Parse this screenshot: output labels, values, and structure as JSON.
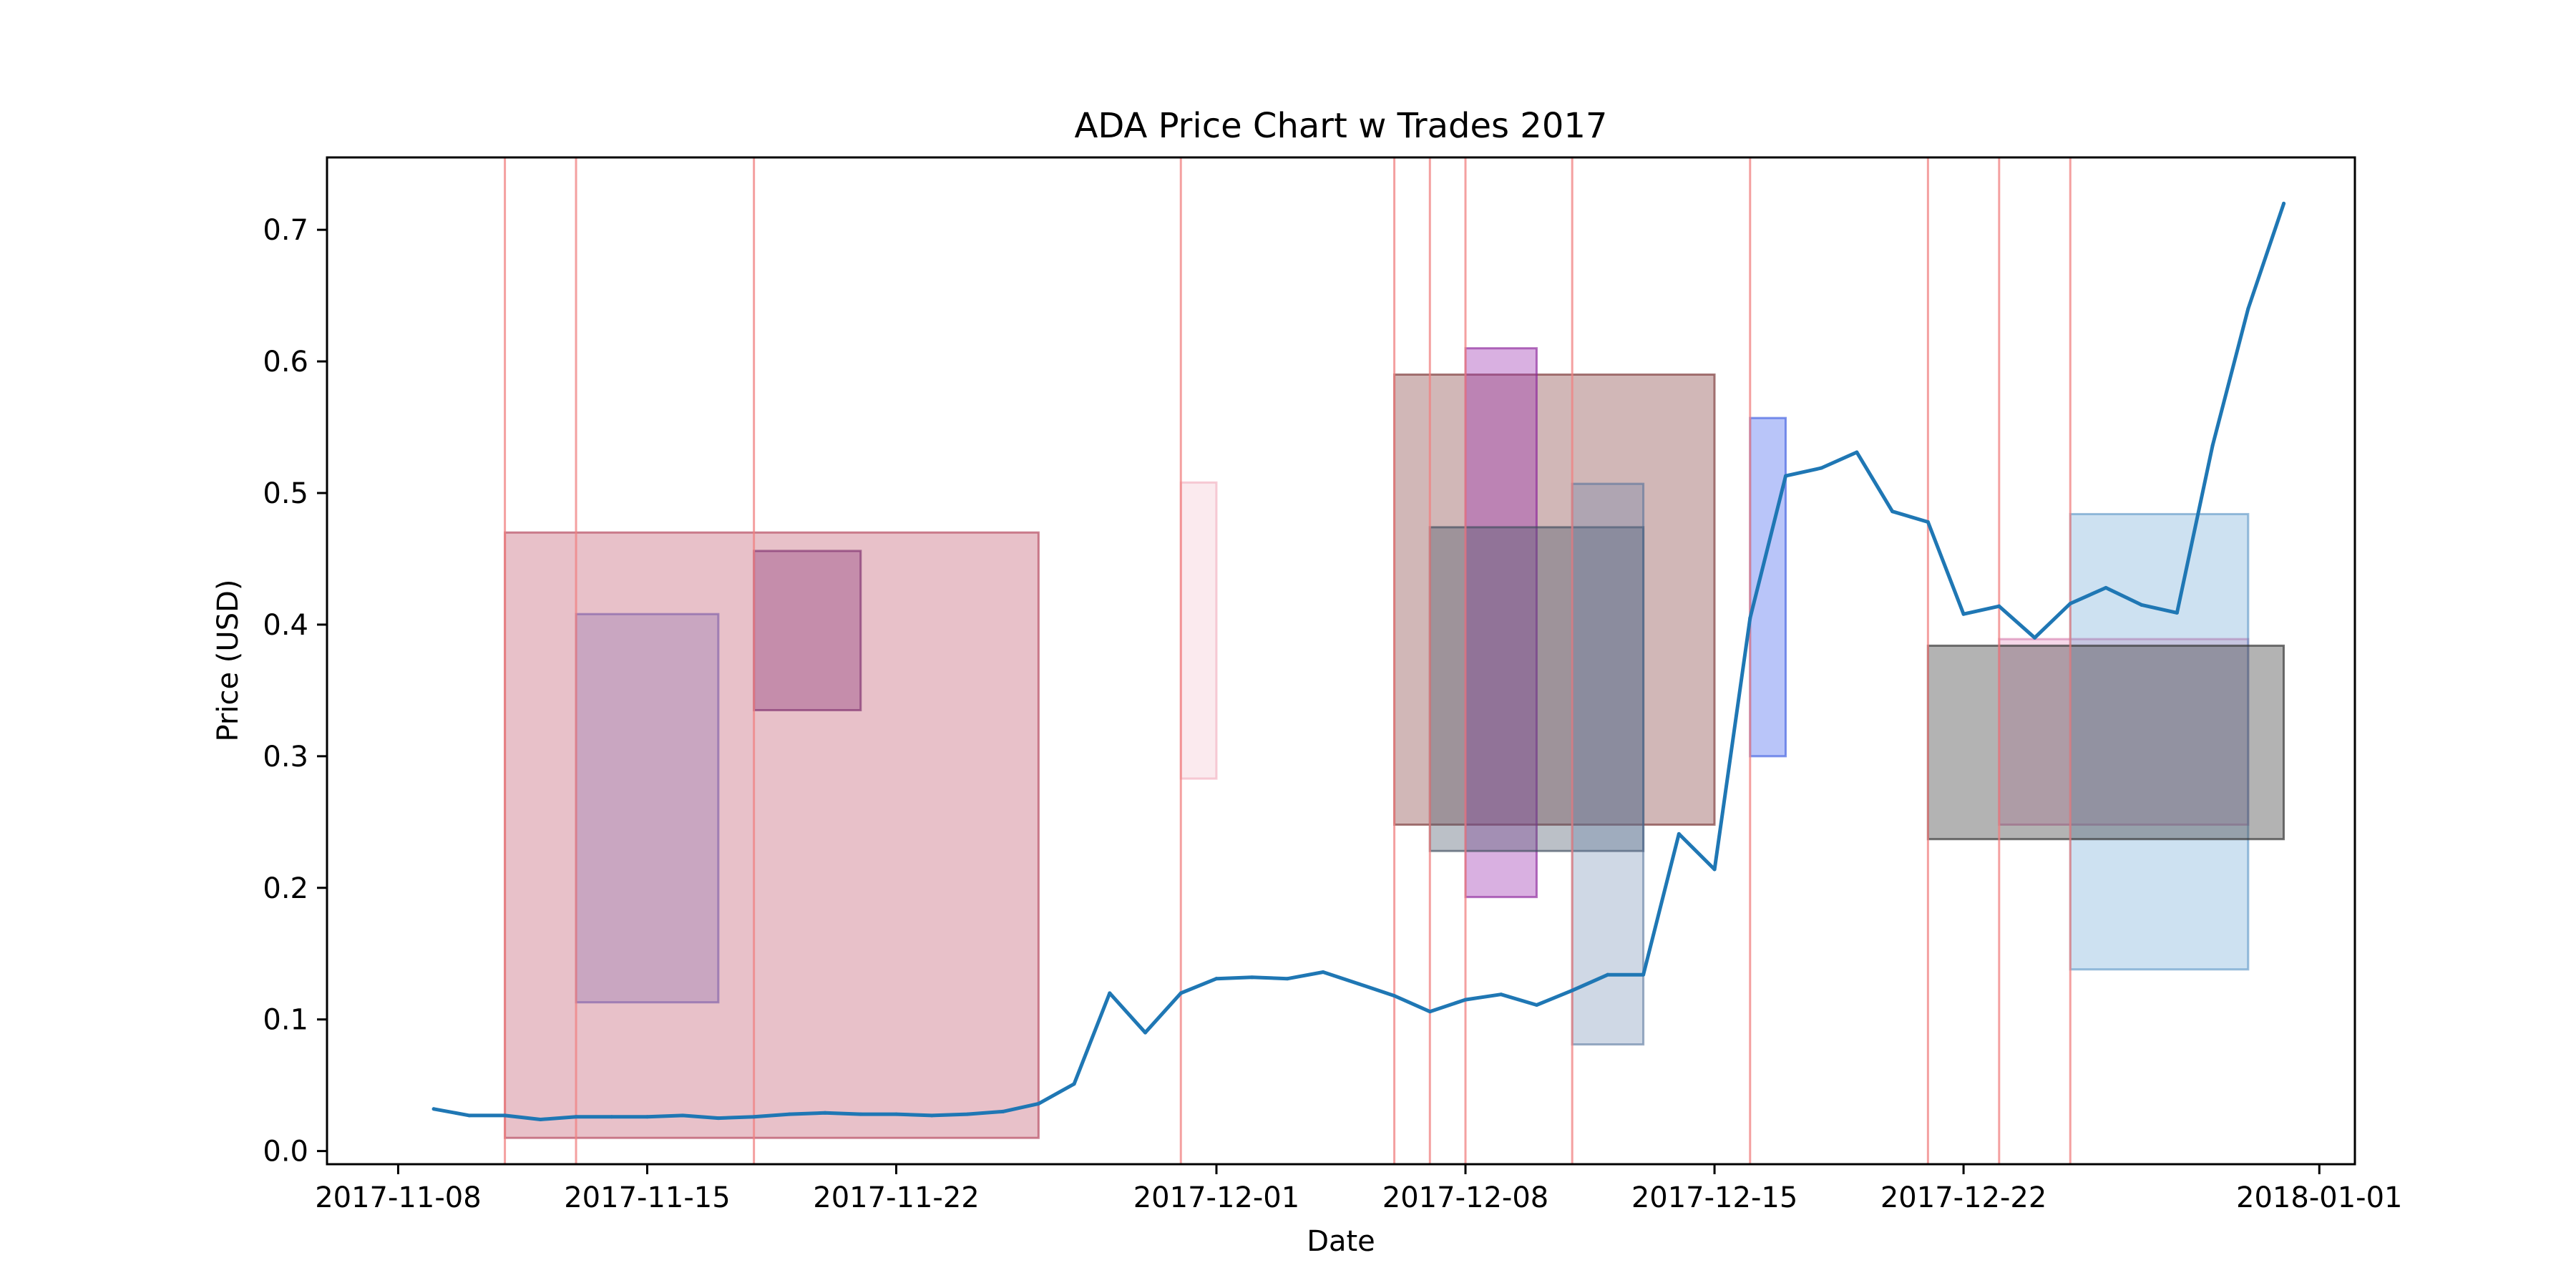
{
  "chart_data": {
    "type": "line",
    "title": "ADA Price Chart w Trades 2017",
    "xlabel": "Date",
    "ylabel": "Price (USD)",
    "xlim": [
      "2017-11-06",
      "2018-01-02"
    ],
    "ylim": [
      -0.01,
      0.755
    ],
    "xticks": [
      "2017-11-08",
      "2017-11-15",
      "2017-11-22",
      "2017-12-01",
      "2017-12-08",
      "2017-12-15",
      "2017-12-22",
      "2018-01-01"
    ],
    "yticks": [
      "0.0",
      "0.1",
      "0.2",
      "0.3",
      "0.4",
      "0.5",
      "0.6",
      "0.7"
    ],
    "grid": false,
    "legend": "none",
    "series": [
      {
        "color": "#1f77b4",
        "points": [
          [
            "2017-11-09",
            0.032
          ],
          [
            "2017-11-10",
            0.027
          ],
          [
            "2017-11-11",
            0.027
          ],
          [
            "2017-11-12",
            0.024
          ],
          [
            "2017-11-13",
            0.026
          ],
          [
            "2017-11-14",
            0.026
          ],
          [
            "2017-11-15",
            0.026
          ],
          [
            "2017-11-16",
            0.027
          ],
          [
            "2017-11-17",
            0.025
          ],
          [
            "2017-11-18",
            0.026
          ],
          [
            "2017-11-19",
            0.028
          ],
          [
            "2017-11-20",
            0.029
          ],
          [
            "2017-11-21",
            0.028
          ],
          [
            "2017-11-22",
            0.028
          ],
          [
            "2017-11-23",
            0.027
          ],
          [
            "2017-11-24",
            0.028
          ],
          [
            "2017-11-25",
            0.03
          ],
          [
            "2017-11-26",
            0.036
          ],
          [
            "2017-11-27",
            0.051
          ],
          [
            "2017-11-28",
            0.12
          ],
          [
            "2017-11-29",
            0.09
          ],
          [
            "2017-11-30",
            0.12
          ],
          [
            "2017-12-01",
            0.131
          ],
          [
            "2017-12-02",
            0.132
          ],
          [
            "2017-12-03",
            0.131
          ],
          [
            "2017-12-04",
            0.136
          ],
          [
            "2017-12-05",
            0.127
          ],
          [
            "2017-12-06",
            0.118
          ],
          [
            "2017-12-07",
            0.106
          ],
          [
            "2017-12-08",
            0.115
          ],
          [
            "2017-12-09",
            0.119
          ],
          [
            "2017-12-10",
            0.111
          ],
          [
            "2017-12-11",
            0.122
          ],
          [
            "2017-12-12",
            0.134
          ],
          [
            "2017-12-13",
            0.134
          ],
          [
            "2017-12-14",
            0.241
          ],
          [
            "2017-12-15",
            0.214
          ],
          [
            "2017-12-16",
            0.405
          ],
          [
            "2017-12-17",
            0.513
          ],
          [
            "2017-12-18",
            0.519
          ],
          [
            "2017-12-19",
            0.531
          ],
          [
            "2017-12-20",
            0.486
          ],
          [
            "2017-12-21",
            0.478
          ],
          [
            "2017-12-22",
            0.408
          ],
          [
            "2017-12-23",
            0.414
          ],
          [
            "2017-12-24",
            0.39
          ],
          [
            "2017-12-25",
            0.416
          ],
          [
            "2017-12-26",
            0.428
          ],
          [
            "2017-12-27",
            0.415
          ],
          [
            "2017-12-28",
            0.409
          ],
          [
            "2017-12-29",
            0.536
          ],
          [
            "2017-12-30",
            0.64
          ],
          [
            "2017-12-31",
            0.72
          ]
        ]
      }
    ],
    "trade_lines": {
      "color": "#f08080",
      "dates": [
        "2017-11-11",
        "2017-11-13",
        "2017-11-18",
        "2017-11-30",
        "2017-12-06",
        "2017-12-07",
        "2017-12-08",
        "2017-12-11",
        "2017-12-16",
        "2017-12-21",
        "2017-12-23",
        "2017-12-25"
      ]
    },
    "trade_boxes": [
      {
        "x0": "2017-11-11",
        "x1": "2017-11-26",
        "y0": 0.01,
        "y1": 0.47,
        "fill": "#c96b7e",
        "alpha": 0.42,
        "stroke": "#b5475e"
      },
      {
        "x0": "2017-11-13",
        "x1": "2017-11-17",
        "y0": 0.113,
        "y1": 0.408,
        "fill": "#8e76b3",
        "alpha": 0.35,
        "stroke": "#7a5aa8"
      },
      {
        "x0": "2017-11-18",
        "x1": "2017-11-21",
        "y0": 0.335,
        "y1": 0.456,
        "fill": "#8b3a7b",
        "alpha": 0.38,
        "stroke": "#7b2d6c"
      },
      {
        "x0": "2017-11-30",
        "x1": "2017-12-01",
        "y0": 0.283,
        "y1": 0.508,
        "fill": "#f2b8c6",
        "alpha": 0.3,
        "stroke": "#f0a4b6"
      },
      {
        "x0": "2017-12-06",
        "x1": "2017-12-15",
        "y0": 0.248,
        "y1": 0.59,
        "fill": "#8b4a4a",
        "alpha": 0.4,
        "stroke": "#7a3636"
      },
      {
        "x0": "2017-12-08",
        "x1": "2017-12-10",
        "y0": 0.193,
        "y1": 0.61,
        "fill": "#9b30b0",
        "alpha": 0.38,
        "stroke": "#8a2299"
      },
      {
        "x0": "2017-12-07",
        "x1": "2017-12-13",
        "y0": 0.228,
        "y1": 0.474,
        "fill": "#4c5a6c",
        "alpha": 0.38,
        "stroke": "#3e4b5c"
      },
      {
        "x0": "2017-12-11",
        "x1": "2017-12-13",
        "y0": 0.081,
        "y1": 0.507,
        "fill": "#5f7fa8",
        "alpha": 0.3,
        "stroke": "#4e6e98"
      },
      {
        "x0": "2017-12-16",
        "x1": "2017-12-17",
        "y0": 0.3,
        "y1": 0.557,
        "fill": "#4f6ef0",
        "alpha": 0.4,
        "stroke": "#3f5ee0"
      },
      {
        "x0": "2017-12-23",
        "x1": "2017-12-30",
        "y0": 0.248,
        "y1": 0.389,
        "fill": "#e48fbf",
        "alpha": 0.35,
        "stroke": "#d57aac"
      },
      {
        "x0": "2017-12-25",
        "x1": "2017-12-30",
        "y0": 0.138,
        "y1": 0.484,
        "fill": "#5a9bd0",
        "alpha": 0.3,
        "stroke": "#4a8bc0"
      },
      {
        "x0": "2017-12-21",
        "x1": "2017-12-31",
        "y0": 0.237,
        "y1": 0.384,
        "fill": "#4a4a4a",
        "alpha": 0.42,
        "stroke": "#333333"
      }
    ]
  }
}
